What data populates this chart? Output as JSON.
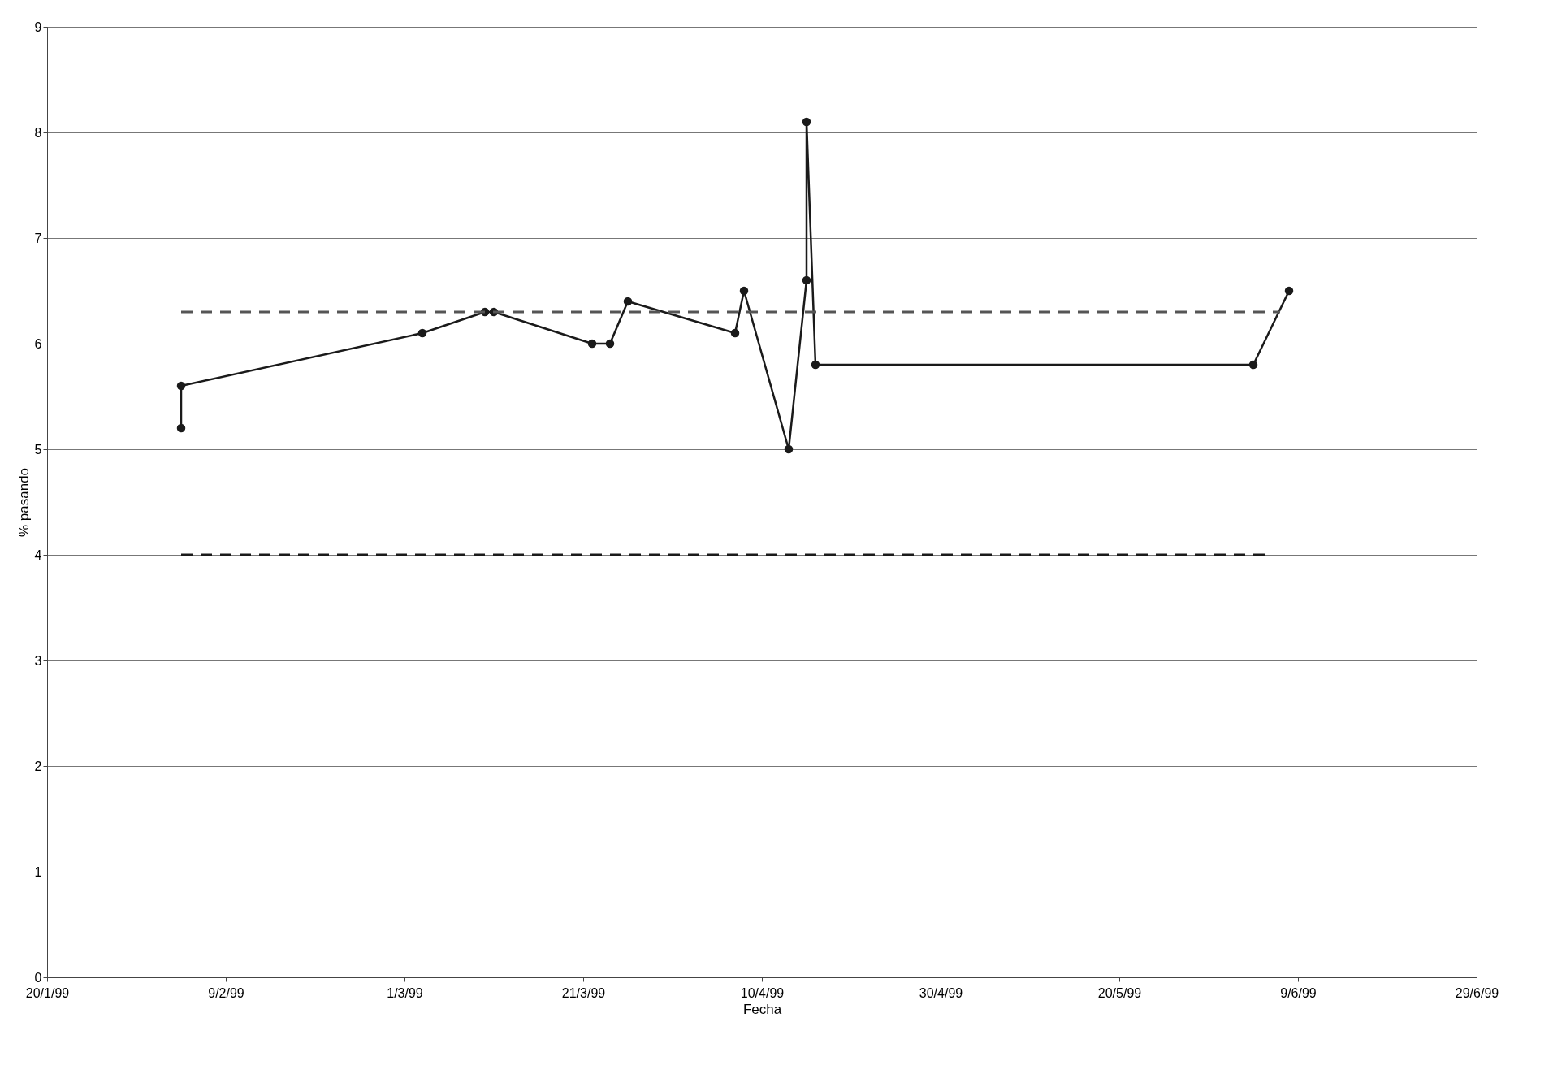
{
  "chart_data": {
    "type": "line",
    "xlabel": "Fecha",
    "ylabel": "% pasando",
    "xlim": [
      "1999-01-20",
      "1999-06-29"
    ],
    "xticks": [
      {
        "value": "1999-01-20",
        "label": "20/1/99"
      },
      {
        "value": "1999-02-09",
        "label": "9/2/99"
      },
      {
        "value": "1999-03-01",
        "label": "1/3/99"
      },
      {
        "value": "1999-03-21",
        "label": "21/3/99"
      },
      {
        "value": "1999-04-10",
        "label": "10/4/99"
      },
      {
        "value": "1999-04-30",
        "label": "30/4/99"
      },
      {
        "value": "1999-05-20",
        "label": "20/5/99"
      },
      {
        "value": "1999-06-09",
        "label": "9/6/99"
      },
      {
        "value": "1999-06-29",
        "label": "29/6/99"
      }
    ],
    "ylim": [
      0,
      9
    ],
    "yticks": [
      0,
      1,
      2,
      3,
      4,
      5,
      6,
      7,
      8,
      9
    ],
    "grid": "y",
    "series": [
      {
        "color": "#1a1a1a",
        "marker": "circle",
        "line_style": "solid",
        "x": [
          "1999-02-04",
          "1999-02-04",
          "1999-03-03",
          "1999-03-10",
          "1999-03-11",
          "1999-03-22",
          "1999-03-24",
          "1999-03-26",
          "1999-04-07",
          "1999-04-08",
          "1999-04-13",
          "1999-04-15",
          "1999-04-15",
          "1999-04-16",
          "1999-06-04",
          "1999-06-08"
        ],
        "values": [
          5.2,
          5.6,
          6.1,
          6.3,
          6.3,
          6.0,
          6.0,
          6.4,
          6.1,
          6.5,
          5.0,
          6.6,
          8.1,
          5.8,
          5.8,
          6.5
        ]
      },
      {
        "color": "#555555",
        "marker": "none",
        "line_style": "dashed",
        "x": [
          "1999-02-04",
          "1999-06-07"
        ],
        "values": [
          6.3,
          6.3
        ]
      },
      {
        "color": "#1a1a1a",
        "marker": "none",
        "line_style": "dashed",
        "x": [
          "1999-02-04",
          "1999-06-06"
        ],
        "values": [
          4.0,
          4.0
        ]
      }
    ]
  }
}
